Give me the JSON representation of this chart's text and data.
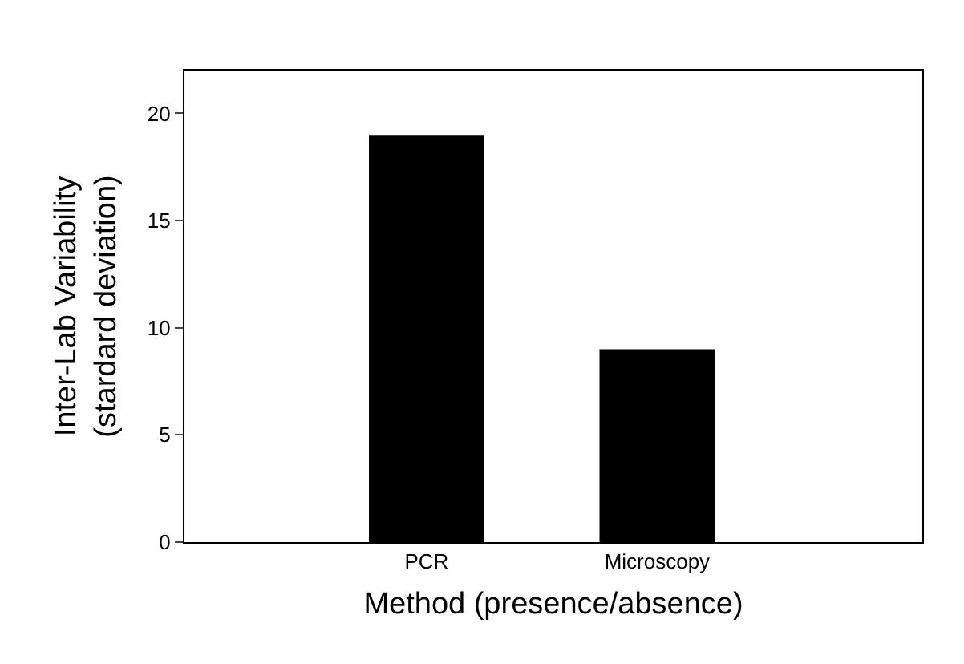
{
  "chart_data": {
    "type": "bar",
    "xlabel": "Method (presence/absence)",
    "ylabel": "Inter-Lab Variability\n(stardard deviation)",
    "categories": [
      "PCR",
      "Microscopy"
    ],
    "values": [
      19,
      9
    ],
    "color": "#000000",
    "ylim": [
      0,
      22
    ],
    "yticks": [
      0,
      5,
      10,
      15,
      20
    ]
  }
}
